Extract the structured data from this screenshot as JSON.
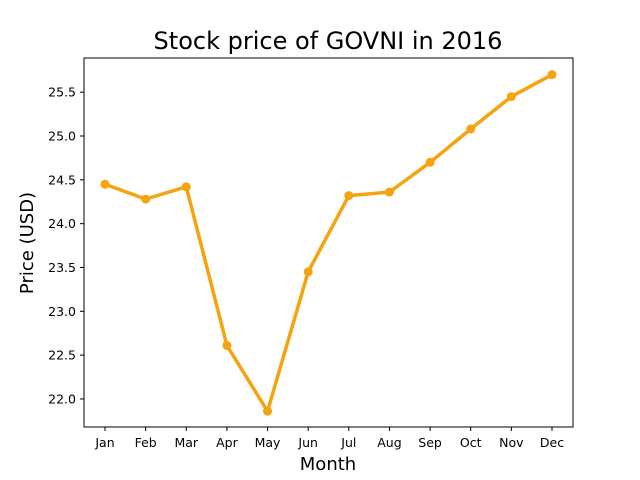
{
  "chart_data": {
    "type": "line",
    "title": "Stock price of GOVNI in 2016",
    "xlabel": "Month",
    "ylabel": "Price (USD)",
    "categories": [
      "Jan",
      "Feb",
      "Mar",
      "Apr",
      "May",
      "Jun",
      "Jul",
      "Aug",
      "Sep",
      "Oct",
      "Nov",
      "Dec"
    ],
    "series": [
      {
        "values": [
          24.45,
          24.28,
          24.42,
          22.61,
          21.86,
          23.45,
          24.32,
          24.36,
          24.7,
          25.08,
          25.45,
          25.7
        ],
        "color": "#f5a30f",
        "marker": "circle"
      }
    ],
    "yticks": [
      22.0,
      22.5,
      23.0,
      23.5,
      24.0,
      24.5,
      25.0,
      25.5
    ],
    "ytick_labels": [
      "22.0",
      "22.5",
      "23.0",
      "23.5",
      "24.0",
      "24.5",
      "25.0",
      "25.5"
    ],
    "ylim": [
      21.68,
      25.89
    ],
    "grid": false,
    "legend": false
  }
}
